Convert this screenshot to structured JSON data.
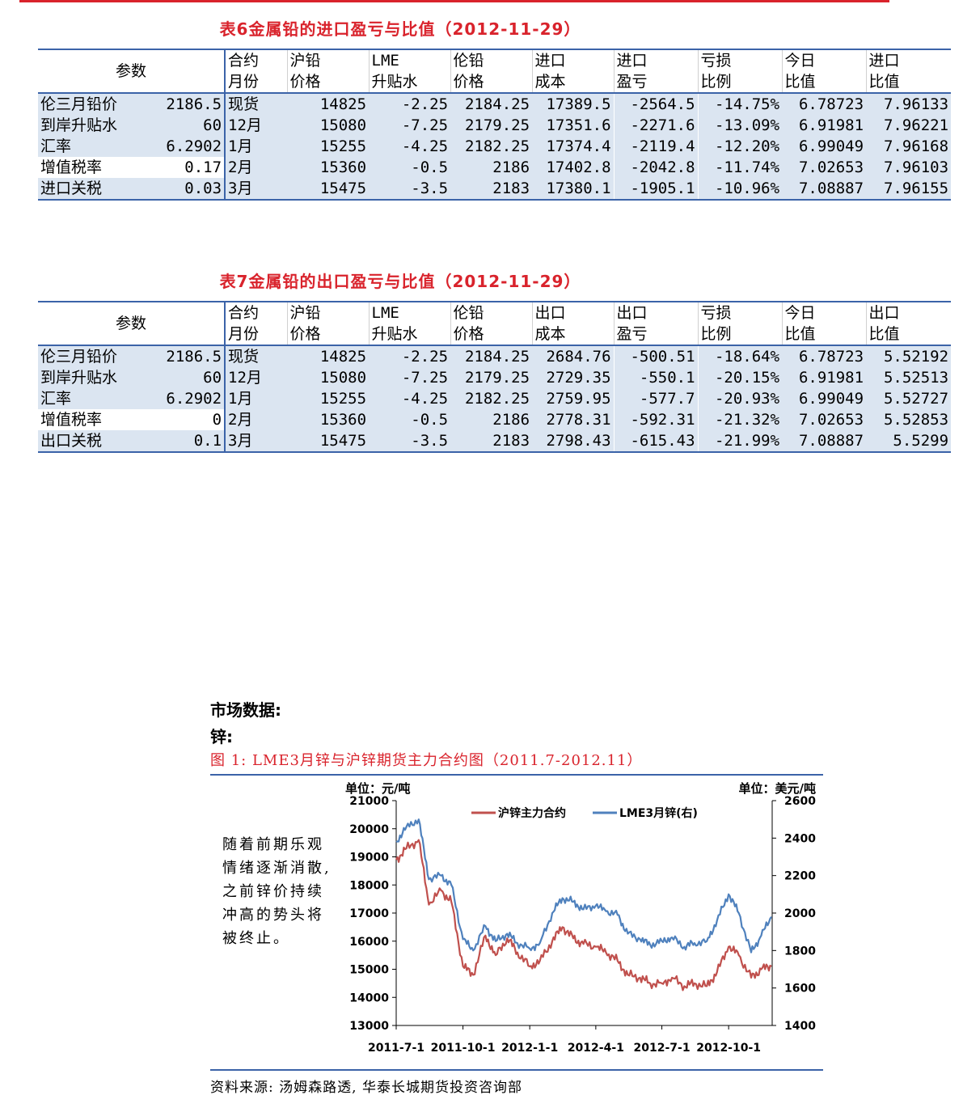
{
  "table6": {
    "title": "表6金属铅的进口盈亏与比值（2012-11-29）",
    "params_label": "参数",
    "headers": [
      [
        "合约",
        "月份"
      ],
      [
        "沪铅",
        "价格"
      ],
      [
        "LME",
        "升贴水"
      ],
      [
        "伦铅",
        "价格"
      ],
      [
        "进口",
        "成本"
      ],
      [
        "进口",
        "盈亏"
      ],
      [
        "亏损",
        "比例"
      ],
      [
        "今日",
        "比值"
      ],
      [
        "进口",
        "比值"
      ]
    ],
    "rows": [
      {
        "label": "伦三月铅价",
        "pval": "2186.5",
        "cells": [
          "现货",
          "14825",
          "-2.25",
          "2184.25",
          "17389.5",
          "-2564.5",
          "-14.75%",
          "6.78723",
          "7.96133"
        ]
      },
      {
        "label": "到岸升贴水",
        "pval": "60",
        "cells": [
          "12月",
          "15080",
          "-7.25",
          "2179.25",
          "17351.6",
          "-2271.6",
          "-13.09%",
          "6.91981",
          "7.96221"
        ]
      },
      {
        "label": "汇率",
        "pval": "6.2902",
        "cells": [
          "1月",
          "15255",
          "-4.25",
          "2182.25",
          "17374.4",
          "-2119.4",
          "-12.20%",
          "6.99049",
          "7.96168"
        ]
      },
      {
        "label": "增值税率",
        "pval": "0.17",
        "cells": [
          "2月",
          "15360",
          "-0.5",
          "2186",
          "17402.8",
          "-2042.8",
          "-11.74%",
          "7.02653",
          "7.96103"
        ]
      },
      {
        "label": "进口关税",
        "pval": "0.03",
        "cells": [
          "3月",
          "15475",
          "-3.5",
          "2183",
          "17380.1",
          "-1905.1",
          "-10.96%",
          "7.08887",
          "7.96155"
        ]
      }
    ]
  },
  "table7": {
    "title": "表7金属铅的出口盈亏与比值（2012-11-29）",
    "params_label": "参数",
    "headers": [
      [
        "合约",
        "月份"
      ],
      [
        "沪铅",
        "价格"
      ],
      [
        "LME",
        "升贴水"
      ],
      [
        "伦铅",
        "价格"
      ],
      [
        "出口",
        "成本"
      ],
      [
        "出口",
        "盈亏"
      ],
      [
        "亏损",
        "比例"
      ],
      [
        "今日",
        "比值"
      ],
      [
        "出口",
        "比值"
      ]
    ],
    "rows": [
      {
        "label": "伦三月铅价",
        "pval": "2186.5",
        "cells": [
          "现货",
          "14825",
          "-2.25",
          "2184.25",
          "2684.76",
          "-500.51",
          "-18.64%",
          "6.78723",
          "5.52192"
        ]
      },
      {
        "label": "到岸升贴水",
        "pval": "60",
        "cells": [
          "12月",
          "15080",
          "-7.25",
          "2179.25",
          "2729.35",
          "-550.1",
          "-20.15%",
          "6.91981",
          "5.52513"
        ]
      },
      {
        "label": "汇率",
        "pval": "6.2902",
        "cells": [
          "1月",
          "15255",
          "-4.25",
          "2182.25",
          "2759.95",
          "-577.7",
          "-20.93%",
          "6.99049",
          "5.52727"
        ]
      },
      {
        "label": "增值税率",
        "pval": "0",
        "cells": [
          "2月",
          "15360",
          "-0.5",
          "2186",
          "2778.31",
          "-592.31",
          "-21.32%",
          "7.02653",
          "5.52853"
        ]
      },
      {
        "label": "出口关税",
        "pval": "0.1",
        "cells": [
          "3月",
          "15475",
          "-3.5",
          "2183",
          "2798.43",
          "-615.43",
          "-21.99%",
          "7.08887",
          "5.5299"
        ]
      }
    ]
  },
  "section": {
    "market": "市场数据:",
    "zinc": "锌:"
  },
  "figure": {
    "title": "图 1: LME3月锌与沪锌期货主力合约图（2011.7-2012.11）",
    "commentary": "随着前期乐观情绪逐渐消散,之前锌价持续冲高的势头将被终止。",
    "source": "资料来源: 汤姆森路透, 华泰长城期货投资咨询部"
  },
  "chart_data": {
    "type": "line",
    "left_unit": "单位：元/吨",
    "right_unit": "单位：美元/吨",
    "x_ticks": [
      "2011-7-1",
      "2011-10-1",
      "2012-1-1",
      "2012-4-1",
      "2012-7-1",
      "2012-10-1"
    ],
    "ylim_left": [
      13000,
      21000
    ],
    "yticks_left": [
      "13000",
      "14000",
      "15000",
      "16000",
      "17000",
      "18000",
      "19000",
      "20000",
      "21000"
    ],
    "ylim_right": [
      1400,
      2600
    ],
    "yticks_right": [
      "1400",
      "1600",
      "1800",
      "2000",
      "2200",
      "2400",
      "2600"
    ],
    "legend_position": "top-right",
    "series": [
      {
        "name": "沪锌主力合约",
        "axis": "left",
        "color": "#c0504d",
        "x": [
          "2011-07-01",
          "2011-07-15",
          "2011-08-01",
          "2011-08-15",
          "2011-09-01",
          "2011-09-15",
          "2011-10-01",
          "2011-10-15",
          "2011-11-01",
          "2011-11-15",
          "2011-12-01",
          "2011-12-15",
          "2012-01-01",
          "2012-01-15",
          "2012-02-01",
          "2012-02-15",
          "2012-03-01",
          "2012-03-15",
          "2012-04-01",
          "2012-04-15",
          "2012-05-01",
          "2012-05-15",
          "2012-06-01",
          "2012-06-15",
          "2012-07-01",
          "2012-07-15",
          "2012-08-01",
          "2012-08-15",
          "2012-09-01",
          "2012-09-15",
          "2012-10-01",
          "2012-10-15",
          "2012-11-01",
          "2012-11-15",
          "2012-11-29"
        ],
        "y": [
          18900,
          19300,
          19600,
          17300,
          17800,
          17400,
          15100,
          14800,
          16200,
          15500,
          16100,
          15600,
          15100,
          15300,
          16000,
          16500,
          16100,
          15900,
          15800,
          15600,
          15300,
          14800,
          14700,
          14500,
          14500,
          14700,
          14400,
          14500,
          14400,
          14900,
          15800,
          15500,
          14700,
          15000,
          15100
        ]
      },
      {
        "name": "LME3月锌(右)",
        "axis": "right",
        "color": "#4f81bd",
        "x": [
          "2011-07-01",
          "2011-07-15",
          "2011-08-01",
          "2011-08-15",
          "2011-09-01",
          "2011-09-15",
          "2011-10-01",
          "2011-10-15",
          "2011-11-01",
          "2011-11-15",
          "2011-12-01",
          "2011-12-15",
          "2012-01-01",
          "2012-01-15",
          "2012-02-01",
          "2012-02-15",
          "2012-03-01",
          "2012-03-15",
          "2012-04-01",
          "2012-04-15",
          "2012-05-01",
          "2012-05-15",
          "2012-06-01",
          "2012-06-15",
          "2012-07-01",
          "2012-07-15",
          "2012-08-01",
          "2012-08-15",
          "2012-09-01",
          "2012-09-15",
          "2012-10-01",
          "2012-10-15",
          "2012-11-01",
          "2012-11-15",
          "2012-11-29"
        ],
        "y": [
          2380,
          2460,
          2500,
          2180,
          2200,
          2150,
          1860,
          1800,
          1930,
          1850,
          1890,
          1840,
          1810,
          1840,
          2000,
          2080,
          2060,
          2020,
          2040,
          2010,
          1990,
          1890,
          1860,
          1830,
          1850,
          1870,
          1820,
          1840,
          1850,
          1960,
          2100,
          2000,
          1790,
          1880,
          1980
        ]
      }
    ]
  }
}
